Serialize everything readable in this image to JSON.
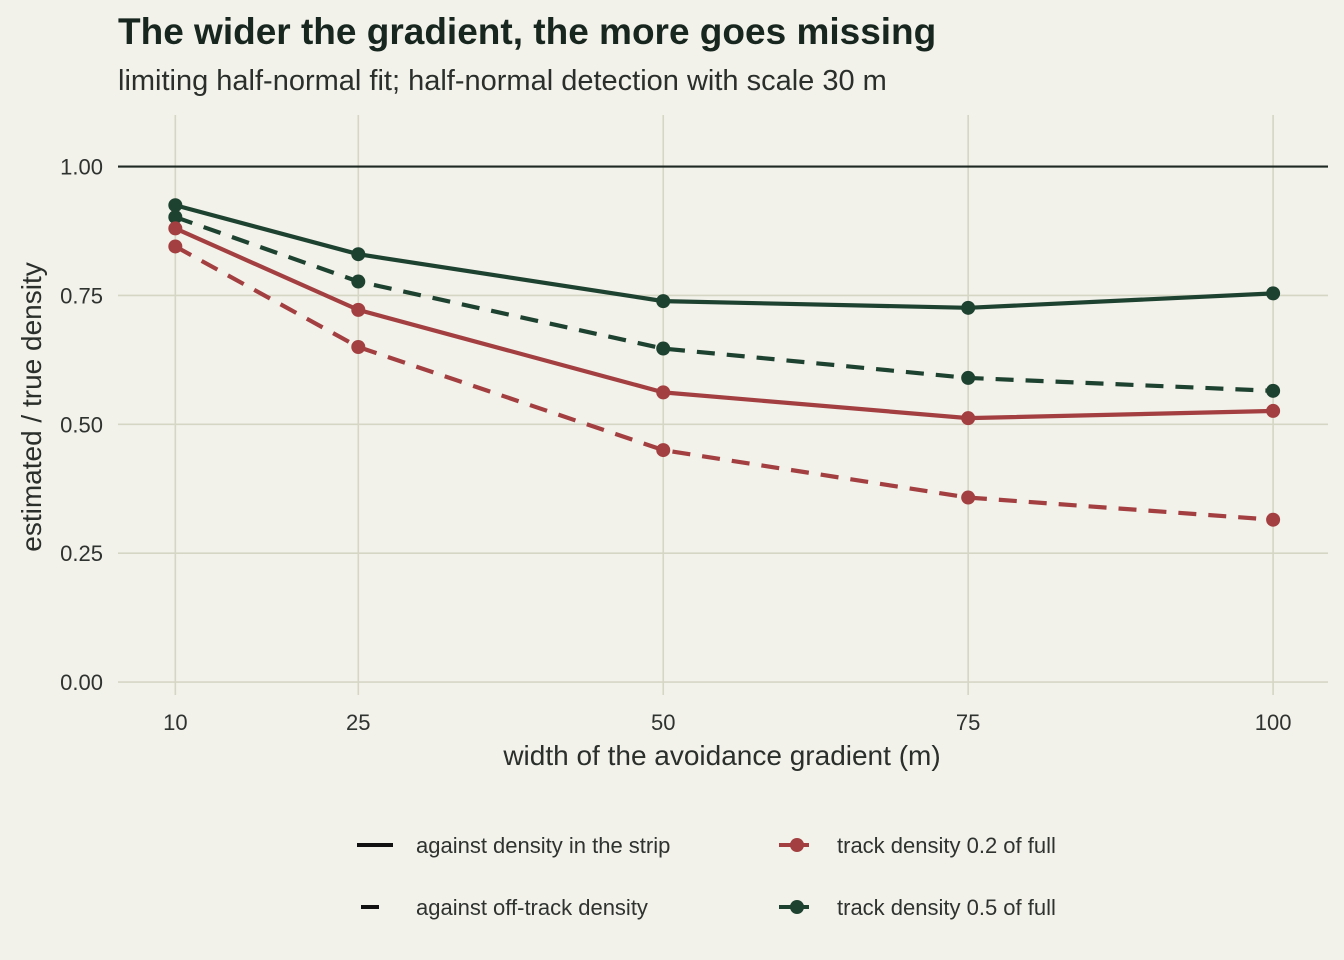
{
  "chart_data": {
    "type": "line",
    "title": "The wider the gradient, the more goes missing",
    "subtitle": "limiting half-normal fit; half-normal detection with scale 30 m",
    "xlabel": "width of the avoidance gradient (m)",
    "ylabel": "estimated / true density",
    "x": [
      10,
      25,
      50,
      75,
      100
    ],
    "x_ticks": [
      10,
      25,
      50,
      75,
      100
    ],
    "x_tick_labels": [
      "10",
      "25",
      "50",
      "75",
      "100"
    ],
    "xlim": [
      5.3,
      104.5
    ],
    "ylim": [
      -0.025,
      1.1
    ],
    "y_ticks": [
      0,
      0.25,
      0.5,
      0.75,
      1
    ],
    "y_tick_labels": [
      "0.00",
      "0.25",
      "0.50",
      "0.75",
      "1.00"
    ],
    "reference_line": {
      "y": 1.0,
      "color": "#1f2a24"
    },
    "grid": true,
    "legend_position": "bottom",
    "series": [
      {
        "comparison": "strip",
        "track": "0.2",
        "color": "#a33f40",
        "linestyle": "solid",
        "values": [
          0.88,
          0.722,
          0.562,
          0.512,
          0.526
        ]
      },
      {
        "comparison": "offtrack",
        "track": "0.2",
        "color": "#a33f40",
        "linestyle": "dashed",
        "values": [
          0.845,
          0.65,
          0.45,
          0.358,
          0.315
        ]
      },
      {
        "comparison": "strip",
        "track": "0.5",
        "color": "#1e4230",
        "linestyle": "solid",
        "values": [
          0.925,
          0.83,
          0.739,
          0.726,
          0.754
        ]
      },
      {
        "comparison": "offtrack",
        "track": "0.5",
        "color": "#1e4230",
        "linestyle": "dashed",
        "values": [
          0.902,
          0.777,
          0.647,
          0.59,
          0.565
        ]
      }
    ],
    "legend": {
      "linetype": [
        {
          "key": "strip",
          "label": "against density in the strip",
          "linestyle": "solid"
        },
        {
          "key": "offtrack",
          "label": "against off-track density",
          "linestyle": "dashed"
        }
      ],
      "colour": [
        {
          "key": "0.2",
          "label": "track density 0.2 of full",
          "color": "#a33f40"
        },
        {
          "key": "0.5",
          "label": "track density 0.5 of full",
          "color": "#1e4230"
        }
      ]
    }
  }
}
